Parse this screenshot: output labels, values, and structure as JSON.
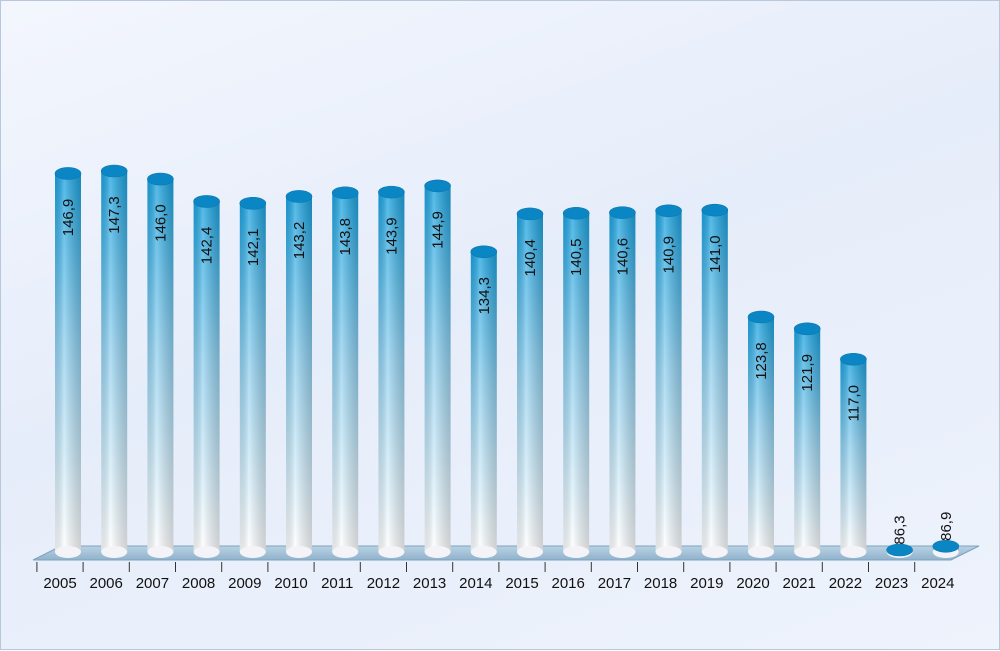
{
  "chart_data": {
    "type": "bar",
    "title": "",
    "xlabel": "",
    "ylabel": "",
    "categories": [
      "2005",
      "2006",
      "2007",
      "2008",
      "2009",
      "2010",
      "2011",
      "2012",
      "2013",
      "2014",
      "2015",
      "2016",
      "2017",
      "2018",
      "2019",
      "2020",
      "2021",
      "2022",
      "2023",
      "2024"
    ],
    "values": [
      146.9,
      147.3,
      146.0,
      142.4,
      142.1,
      143.2,
      143.8,
      143.9,
      144.9,
      134.3,
      140.4,
      140.5,
      140.6,
      140.9,
      141.0,
      123.8,
      121.9,
      117.0,
      86.3,
      86.9
    ],
    "value_labels": [
      "146,9",
      "147,3",
      "146,0",
      "142,4",
      "142,1",
      "143,2",
      "143,8",
      "143,9",
      "144,9",
      "134,3",
      "140,4",
      "140,5",
      "140,6",
      "140,9",
      "141,0",
      "123,8",
      "121,9",
      "117,0",
      "86,3",
      "86,9"
    ],
    "ylim": [
      86.3,
      147.3
    ],
    "grid": false,
    "legend": "none",
    "colors": {
      "bar_top": "#1aa3e0",
      "bar_bottom": "#ffffff",
      "cap": "#0b86c4",
      "floor": "#9fbfd6"
    }
  }
}
